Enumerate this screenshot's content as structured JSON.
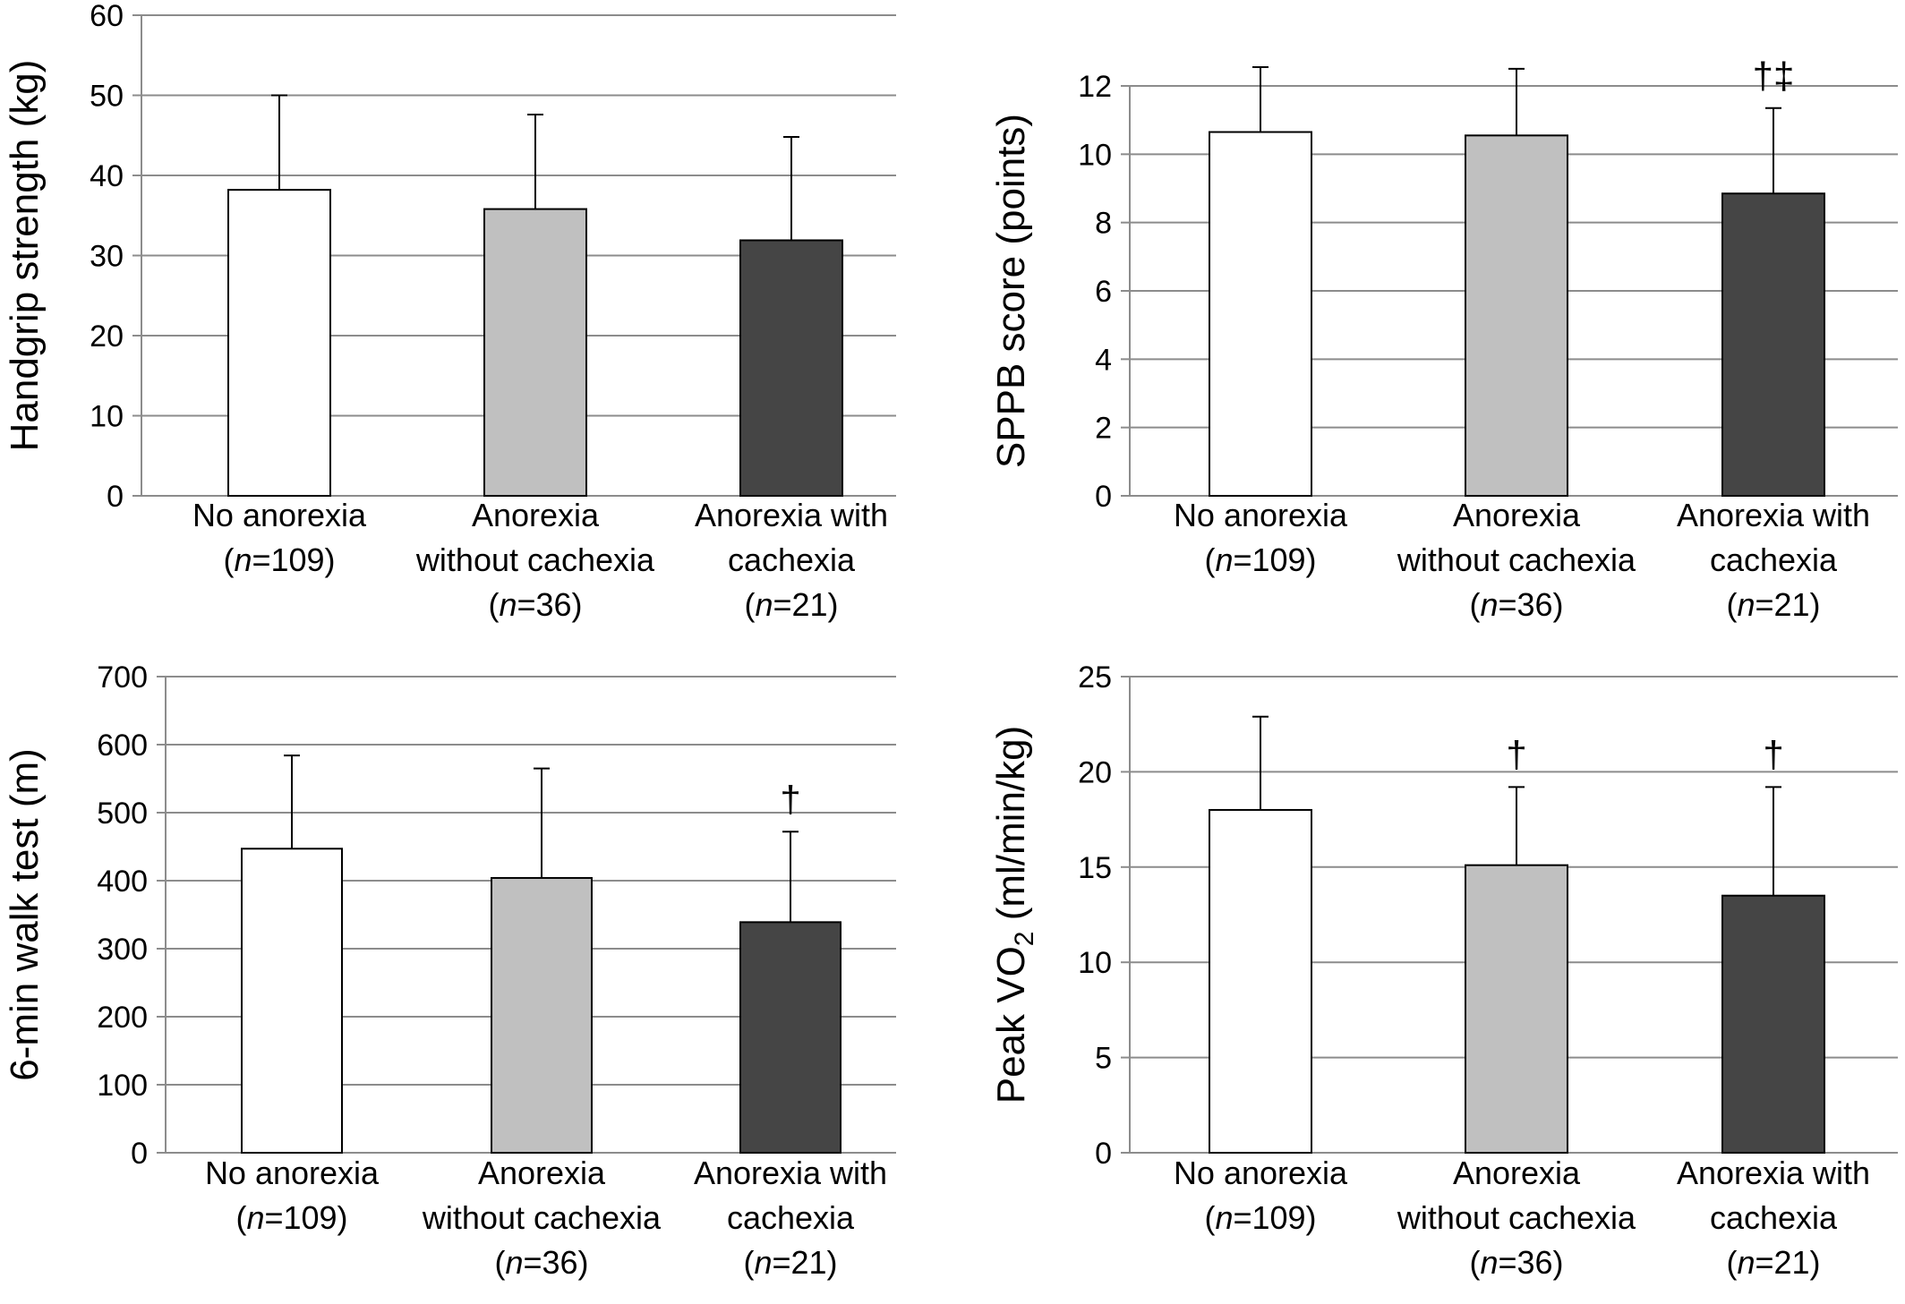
{
  "colors": {
    "no_anorexia": "#ffffff",
    "anorexia_without_cachexia": "#c0c0c0",
    "anorexia_with_cachexia": "#454545",
    "bar_stroke": "#000000",
    "grid": "#8c8c8c"
  },
  "categories": [
    {
      "lines": [
        {
          "text": "No anorexia"
        },
        {
          "prefix": "(",
          "italic": "n",
          "suffix": "=109)"
        }
      ]
    },
    {
      "lines": [
        {
          "text": "Anorexia"
        },
        {
          "text": "without cachexia"
        },
        {
          "prefix": "(",
          "italic": "n",
          "suffix": "=36)"
        }
      ]
    },
    {
      "lines": [
        {
          "text": "Anorexia with"
        },
        {
          "text": "cachexia"
        },
        {
          "prefix": "(",
          "italic": "n",
          "suffix": "=21)"
        }
      ]
    }
  ],
  "chart_data": [
    {
      "type": "bar",
      "ylabel": "Handgrip strength (kg)",
      "ylim": [
        0,
        60
      ],
      "yticks": [
        0,
        10,
        20,
        30,
        40,
        50,
        60
      ],
      "values": [
        38.2,
        35.8,
        31.9
      ],
      "error_upper": [
        50.0,
        47.6,
        44.8
      ],
      "significance": [
        "",
        "",
        ""
      ],
      "grid": true
    },
    {
      "type": "bar",
      "ylabel": "SPPB score (points)",
      "ylim": [
        0,
        12
      ],
      "yticks": [
        0,
        2,
        4,
        6,
        8,
        10,
        12
      ],
      "values": [
        10.65,
        10.55,
        8.85
      ],
      "error_upper": [
        12.55,
        12.5,
        11.35
      ],
      "significance": [
        "",
        "",
        "†‡"
      ],
      "grid": true
    },
    {
      "type": "bar",
      "ylabel": "6-min walk test (m)",
      "ylim": [
        0,
        700
      ],
      "yticks": [
        0,
        100,
        200,
        300,
        400,
        500,
        600,
        700
      ],
      "values": [
        447,
        404,
        339
      ],
      "error_upper": [
        584,
        565,
        472
      ],
      "significance": [
        "",
        "",
        "†"
      ],
      "grid": true
    },
    {
      "type": "bar",
      "ylabel_main": "Peak VO",
      "ylabel_sub": "2",
      "ylabel_rest": " (ml/min/kg)",
      "ylim": [
        0,
        25
      ],
      "yticks": [
        0,
        5,
        10,
        15,
        20,
        25
      ],
      "values": [
        18.0,
        15.1,
        13.5
      ],
      "error_upper": [
        22.9,
        19.2,
        19.2
      ],
      "significance": [
        "",
        "†",
        "†"
      ],
      "grid": true
    }
  ]
}
